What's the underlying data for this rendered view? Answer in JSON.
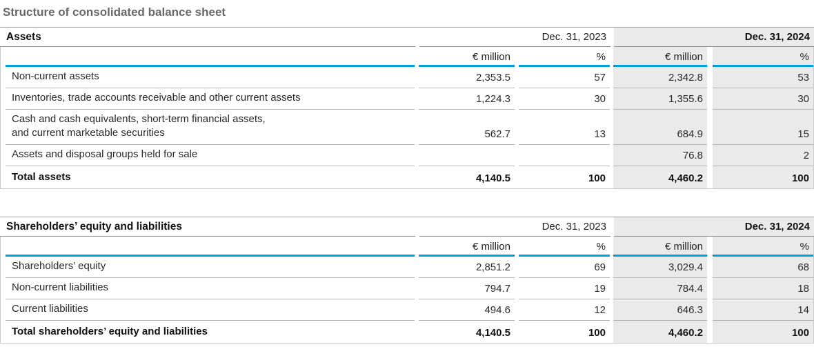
{
  "title": "Structure of consolidated balance sheet",
  "column_headers": {
    "date_2023": "Dec. 31, 2023",
    "date_2024": "Dec. 31, 2024",
    "unit_million": "€ million",
    "unit_percent": "%"
  },
  "colors": {
    "accent_blue": "#009fdf",
    "highlight_column_bg": "#eaeaea"
  },
  "tables": [
    {
      "title": "Assets",
      "rows": [
        {
          "label": "Non-current assets",
          "m2023": "2,353.5",
          "p2023": "57",
          "m2024": "2,342.8",
          "p2024": "53"
        },
        {
          "label": "Inventories, trade accounts receivable and other current assets",
          "m2023": "1,224.3",
          "p2023": "30",
          "m2024": "1,355.6",
          "p2024": "30"
        },
        {
          "label": "Cash and cash equivalents, short-term financial assets,\nand current marketable securities",
          "m2023": "562.7",
          "p2023": "13",
          "m2024": "684.9",
          "p2024": "15"
        },
        {
          "label": "Assets and disposal groups held for sale",
          "m2023": "",
          "p2023": "",
          "m2024": "76.8",
          "p2024": "2"
        }
      ],
      "total": {
        "label": "Total assets",
        "m2023": "4,140.5",
        "p2023": "100",
        "m2024": "4,460.2",
        "p2024": "100"
      }
    },
    {
      "title": "Shareholders’ equity and liabilities",
      "rows": [
        {
          "label": "Shareholders’ equity",
          "m2023": "2,851.2",
          "p2023": "69",
          "m2024": "3,029.4",
          "p2024": "68"
        },
        {
          "label": "Non-current liabilities",
          "m2023": "794.7",
          "p2023": "19",
          "m2024": "784.4",
          "p2024": "18"
        },
        {
          "label": "Current liabilities",
          "m2023": "494.6",
          "p2023": "12",
          "m2024": "646.3",
          "p2024": "14"
        }
      ],
      "total": {
        "label": "Total shareholders’ equity and liabilities",
        "m2023": "4,140.5",
        "p2023": "100",
        "m2024": "4,460.2",
        "p2024": "100"
      }
    }
  ]
}
